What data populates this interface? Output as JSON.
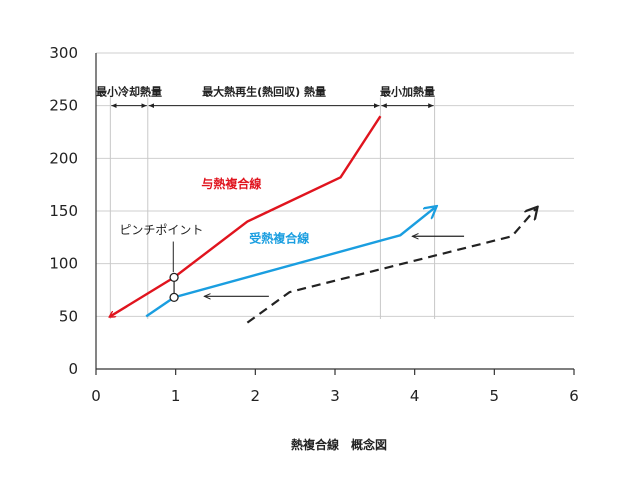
{
  "chart_data": {
    "type": "line",
    "title": "熱複合線　概念図",
    "xlabel": "",
    "ylabel": "",
    "xlim": [
      0,
      6
    ],
    "ylim": [
      0,
      300
    ],
    "x_ticks": [
      0,
      1,
      2,
      3,
      4,
      5,
      6
    ],
    "y_ticks": [
      0,
      50,
      100,
      150,
      200,
      250,
      300
    ],
    "grid": "horizontal",
    "series": [
      {
        "name": "与熱複合線",
        "color": "#e0141e",
        "style": "solid",
        "arrow": "start",
        "x": [
          0.18,
          0.98,
          1.9,
          3.07,
          3.57
        ],
        "y": [
          50,
          87,
          140,
          182,
          240
        ]
      },
      {
        "name": "受熱複合線",
        "color": "#1a9ee0",
        "style": "solid",
        "arrow": "end",
        "x": [
          0.63,
          0.98,
          3.82,
          4.25
        ],
        "y": [
          50,
          68,
          127,
          153
        ]
      },
      {
        "color": "#222222",
        "style": "dashed",
        "arrow": "end",
        "x": [
          1.9,
          2.43,
          5.22,
          5.52
        ],
        "y": [
          44,
          73,
          126,
          152
        ]
      }
    ],
    "regions": [
      {
        "label": "最小冷却熱量",
        "x_start": 0.18,
        "x_end": 0.65
      },
      {
        "label": "最大熱再生(熱回収) 熱量",
        "x_start": 0.65,
        "x_end": 3.57
      },
      {
        "label": "最小加熱量",
        "x_start": 3.57,
        "x_end": 4.25
      }
    ],
    "region_y": 250,
    "pinch_point": {
      "label": "ピンチポイント",
      "x": 0.98,
      "y_top": 87,
      "y_bottom": 68
    },
    "shift_arrows": [
      {
        "x_from": 4.62,
        "x_to": 3.97,
        "y": 126
      },
      {
        "x_from": 2.17,
        "x_to": 1.36,
        "y": 69
      }
    ]
  }
}
